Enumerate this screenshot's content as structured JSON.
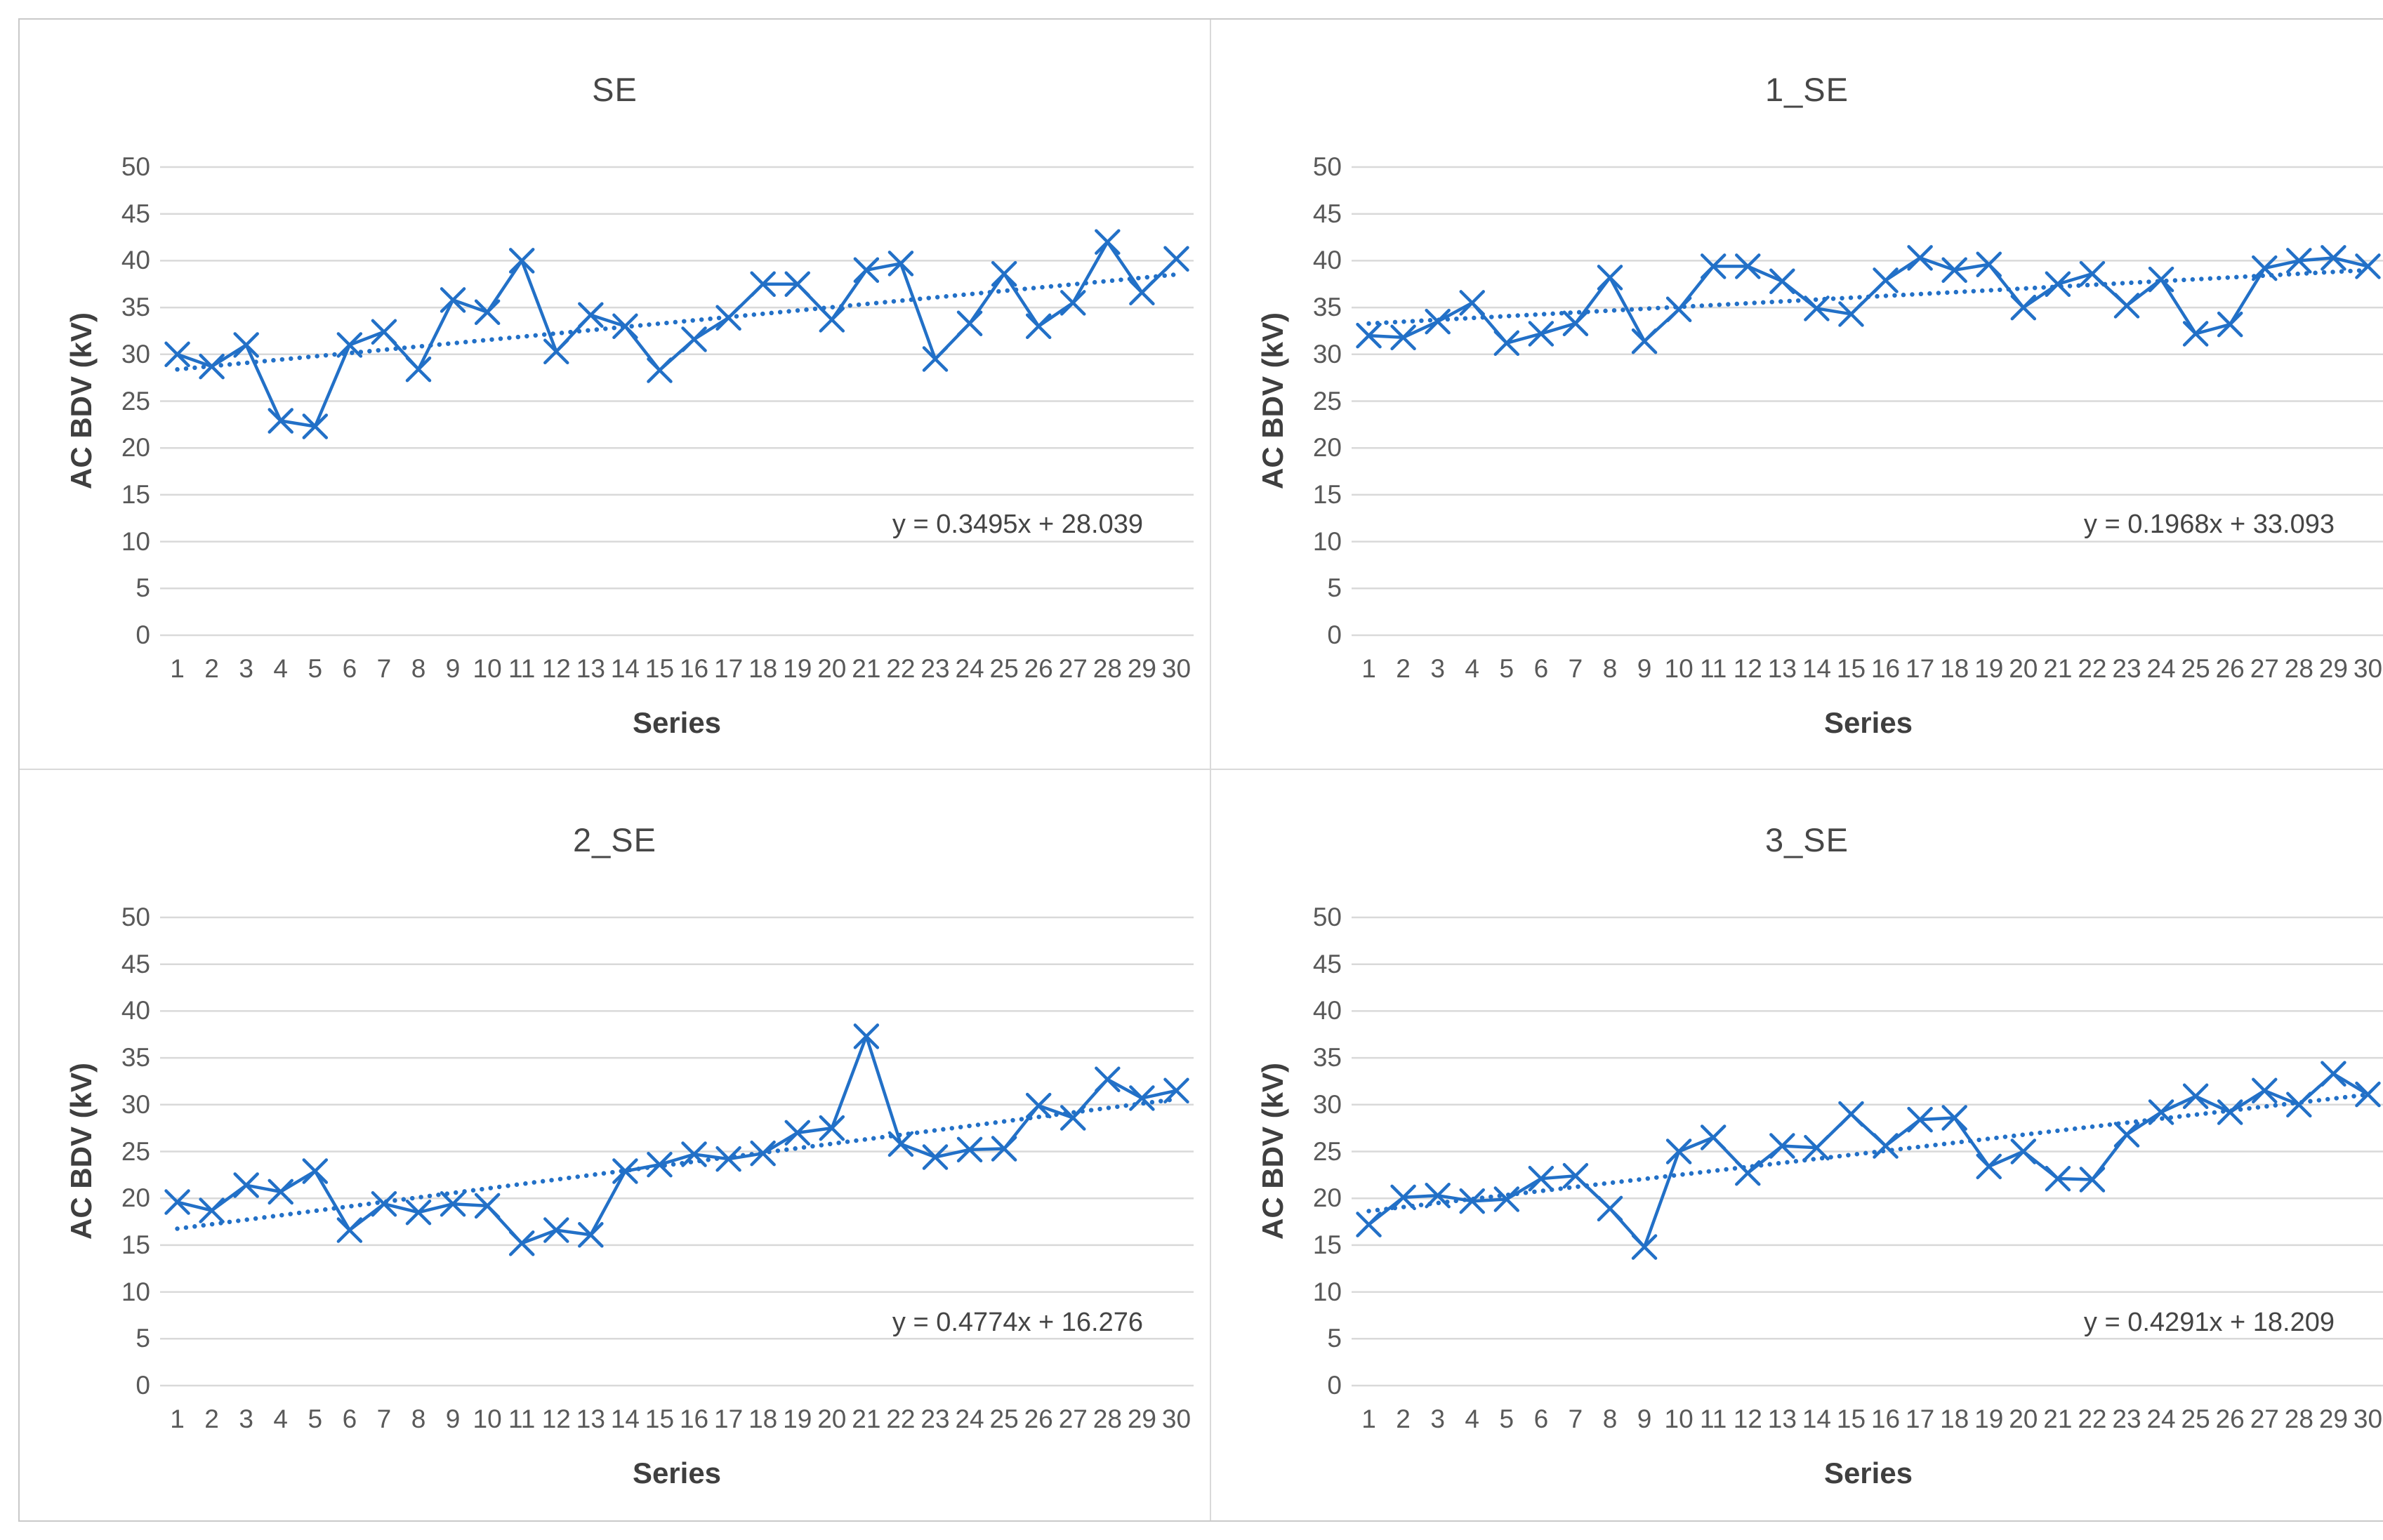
{
  "style": {
    "series_color": "#2270c7",
    "gridline_color": "#d9d9d9",
    "tick_label_color": "#595959",
    "title_color": "#474747",
    "outer_border_color": "#c9c9c9"
  },
  "chart_data": [
    {
      "type": "line",
      "title": "SE",
      "xlabel": "Series",
      "ylabel": "AC BDV (kV)",
      "ylim": [
        0,
        50
      ],
      "ytick_step": 5,
      "grid": true,
      "legend": "none",
      "marker": "x",
      "categories": [
        1,
        2,
        3,
        4,
        5,
        6,
        7,
        8,
        9,
        10,
        11,
        12,
        13,
        14,
        15,
        16,
        17,
        18,
        19,
        20,
        21,
        22,
        23,
        24,
        25,
        26,
        27,
        28,
        29,
        30
      ],
      "values": [
        30.0,
        28.7,
        31.0,
        22.9,
        22.3,
        31.0,
        32.4,
        28.4,
        35.8,
        34.5,
        40.0,
        30.3,
        34.2,
        33.0,
        28.3,
        31.6,
        33.9,
        37.5,
        37.5,
        33.7,
        39.0,
        39.7,
        29.5,
        33.3,
        38.6,
        33.0,
        35.5,
        42.0,
        36.6,
        40.2
      ],
      "trendline": {
        "style": "dotted",
        "slope": 0.3495,
        "intercept": 28.039,
        "equation": "y = 0.3495x + 28.039"
      }
    },
    {
      "type": "line",
      "title": "1_SE",
      "xlabel": "Series",
      "ylabel": "AC BDV (kV)",
      "ylim": [
        0,
        50
      ],
      "ytick_step": 5,
      "grid": true,
      "legend": "none",
      "marker": "x",
      "categories": [
        1,
        2,
        3,
        4,
        5,
        6,
        7,
        8,
        9,
        10,
        11,
        12,
        13,
        14,
        15,
        16,
        17,
        18,
        19,
        20,
        21,
        22,
        23,
        24,
        25,
        26,
        27,
        28,
        29,
        30
      ],
      "values": [
        32.0,
        31.8,
        33.5,
        35.5,
        31.2,
        32.2,
        33.3,
        38.2,
        31.4,
        34.8,
        39.4,
        39.4,
        37.8,
        34.9,
        34.3,
        37.9,
        40.3,
        39.0,
        39.6,
        35.0,
        37.5,
        38.6,
        35.2,
        38.0,
        32.2,
        33.2,
        39.2,
        40.0,
        40.3,
        39.4
      ],
      "trendline": {
        "style": "dotted",
        "slope": 0.1968,
        "intercept": 33.093,
        "equation": "y = 0.1968x + 33.093"
      }
    },
    {
      "type": "line",
      "title": "2_SE",
      "xlabel": "Series",
      "ylabel": "AC BDV (kV)",
      "ylim": [
        0,
        50
      ],
      "ytick_step": 5,
      "grid": true,
      "legend": "none",
      "marker": "x",
      "categories": [
        1,
        2,
        3,
        4,
        5,
        6,
        7,
        8,
        9,
        10,
        11,
        12,
        13,
        14,
        15,
        16,
        17,
        18,
        19,
        20,
        21,
        22,
        23,
        24,
        25,
        26,
        27,
        28,
        29,
        30
      ],
      "values": [
        19.6,
        18.7,
        21.4,
        20.7,
        22.9,
        16.6,
        19.4,
        18.5,
        19.4,
        19.2,
        15.2,
        16.6,
        16.1,
        22.9,
        23.6,
        24.7,
        24.2,
        24.8,
        27.0,
        27.5,
        37.3,
        25.8,
        24.4,
        25.2,
        25.3,
        29.9,
        28.6,
        32.7,
        30.7,
        31.5
      ],
      "trendline": {
        "style": "dotted",
        "slope": 0.4774,
        "intercept": 16.276,
        "equation": "y = 0.4774x + 16.276"
      }
    },
    {
      "type": "line",
      "title": "3_SE",
      "xlabel": "Series",
      "ylabel": "AC BDV (kV)",
      "ylim": [
        0,
        50
      ],
      "ytick_step": 5,
      "grid": true,
      "legend": "none",
      "marker": "x",
      "categories": [
        1,
        2,
        3,
        4,
        5,
        6,
        7,
        8,
        9,
        10,
        11,
        12,
        13,
        14,
        15,
        16,
        17,
        18,
        19,
        20,
        21,
        22,
        23,
        24,
        25,
        26,
        27,
        28,
        29,
        30
      ],
      "values": [
        17.2,
        20.1,
        20.3,
        19.7,
        19.9,
        22.1,
        22.4,
        18.9,
        14.8,
        25.0,
        26.5,
        22.7,
        25.6,
        25.4,
        29.0,
        25.6,
        28.4,
        28.6,
        23.4,
        25.0,
        22.1,
        22.0,
        26.8,
        29.2,
        30.9,
        29.2,
        31.5,
        30.0,
        33.3,
        31.1
      ],
      "trendline": {
        "style": "dotted",
        "slope": 0.4291,
        "intercept": 18.209,
        "equation": "y = 0.4291x + 18.209"
      }
    }
  ]
}
